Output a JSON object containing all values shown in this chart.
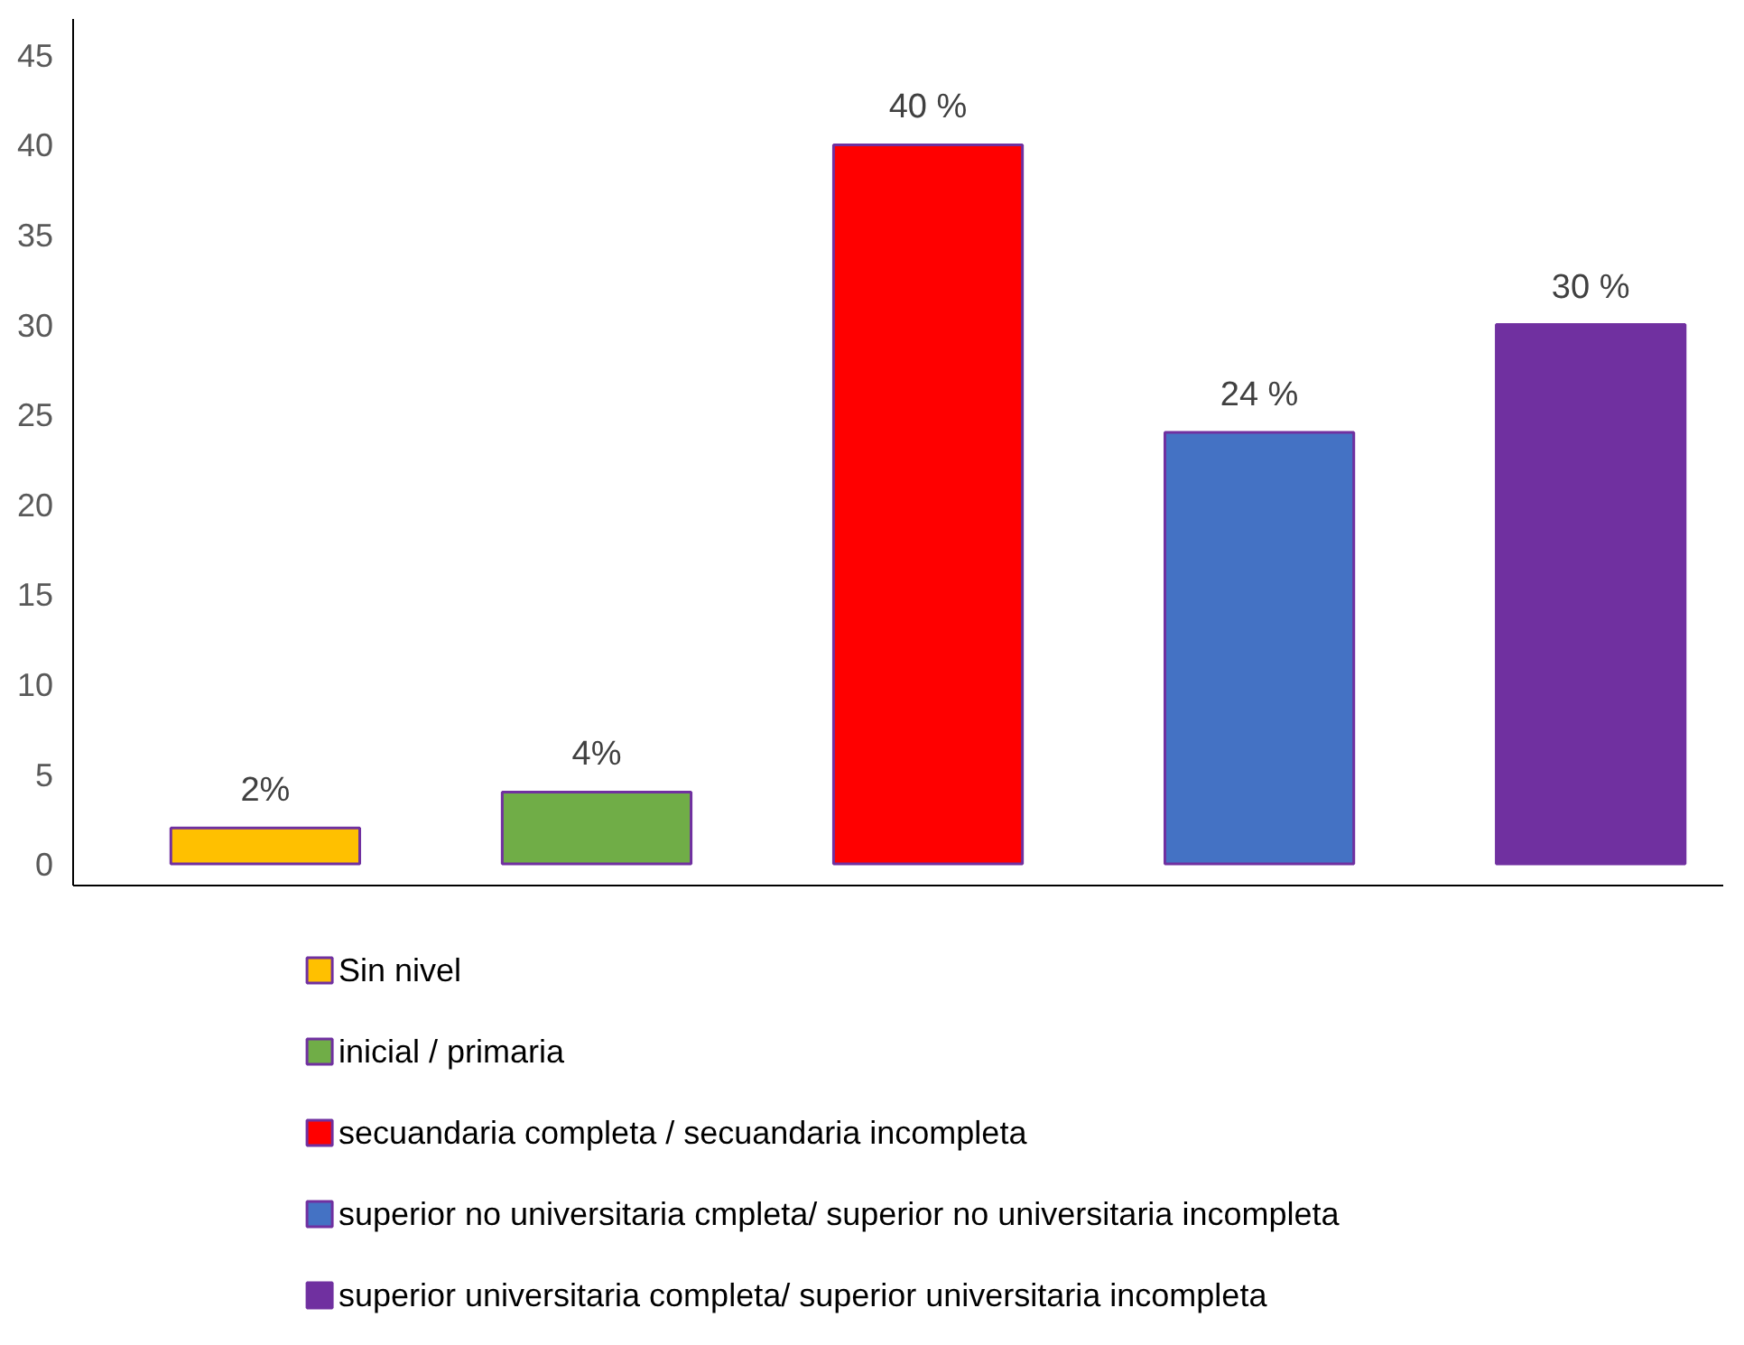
{
  "chart_data": {
    "type": "bar",
    "categories": [
      null,
      null,
      null,
      null,
      null
    ],
    "series": [
      {
        "name": "Sin nivel",
        "color": "#ffc000",
        "values": [
          2,
          null,
          null,
          null,
          null
        ],
        "value_labels": [
          "2%",
          null,
          null,
          null,
          null
        ]
      },
      {
        "name": "inicial / primaria",
        "color": "#70ad47",
        "values": [
          null,
          4,
          null,
          null,
          null
        ],
        "value_labels": [
          null,
          "4%",
          null,
          null,
          null
        ]
      },
      {
        "name": "secuandaria completa / secuandaria incompleta",
        "color": "#ff0000",
        "values": [
          null,
          null,
          40,
          null,
          null
        ],
        "value_labels": [
          null,
          null,
          "40 %",
          null,
          null
        ]
      },
      {
        "name": "superior no universitaria cmpleta/ superior no universitaria incompleta",
        "color": "#4472c4",
        "values": [
          null,
          null,
          null,
          24,
          null
        ],
        "value_labels": [
          null,
          null,
          null,
          "24 %",
          null
        ]
      },
      {
        "name": "superior universitaria completa/ superior universitaria incompleta",
        "color": "#7030a0",
        "values": [
          null,
          null,
          null,
          null,
          30
        ],
        "value_labels": [
          null,
          null,
          null,
          null,
          "30 %"
        ]
      }
    ],
    "ylim": [
      -1.2,
      47
    ],
    "yticks": [
      0,
      5,
      10,
      15,
      20,
      25,
      30,
      35,
      40,
      45
    ],
    "tick_labels": "y",
    "grid": false,
    "legend": "bottom"
  }
}
